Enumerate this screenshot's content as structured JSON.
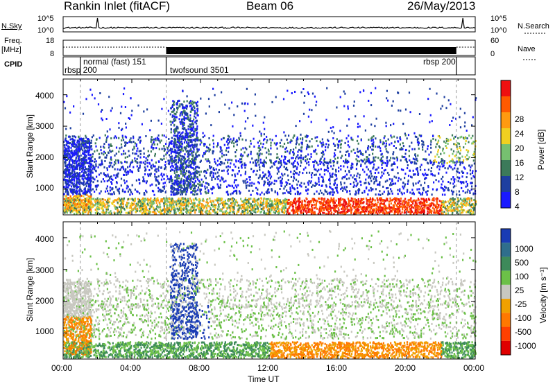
{
  "header": {
    "station": "Rankin Inlet (fitACF)",
    "beam": "Beam 06",
    "date": "26/May/2013"
  },
  "top_panels": {
    "nsky_label": "N.Sky",
    "nsky_ticks": [
      "10^5",
      "10^0"
    ],
    "nsearch_label": "N.Search",
    "nsearch_ticks": [
      "10^5",
      "10^0"
    ],
    "freq_label": "Freq.",
    "freq_unit": "[MHz]",
    "freq_ticks": [
      "18",
      "8"
    ],
    "nave_label": "Nave",
    "nave_ticks": [
      "60",
      "0"
    ],
    "cpid_label": "CPID",
    "cpid_segments": [
      {
        "label": "rbsp 200",
        "start_hr": 0.0,
        "end_hr": 1.0
      },
      {
        "label": "normal (fast) 151",
        "start_hr": 1.0,
        "end_hr": 6.0
      },
      {
        "label": "twofsound 3501",
        "start_hr": 6.0,
        "end_hr": 22.9
      },
      {
        "label": "rbsp 200",
        "start_hr": 22.9,
        "end_hr": 24.0
      }
    ]
  },
  "chart_data": [
    {
      "type": "heatmap",
      "name": "power",
      "xlabel": "",
      "ylabel": "Slant Range [km]",
      "xlim": [
        0,
        24
      ],
      "ylim": [
        180,
        4500
      ],
      "yticks": [
        "1000",
        "2000",
        "3000",
        "4000"
      ],
      "colorbar": {
        "label": "Power [dB]",
        "ticks": [
          "28",
          "24",
          "20",
          "16",
          "12",
          "8",
          "4"
        ],
        "colors": [
          "#1a1aff",
          "#1e3fa0",
          "#3c7a5a",
          "#76c070",
          "#f0d020",
          "#ff9a10",
          "#ff5a00",
          "#ee1010"
        ]
      }
    },
    {
      "type": "heatmap",
      "name": "velocity",
      "xlabel": "Time UT",
      "ylabel": "Slant Range [km]",
      "xlim": [
        0,
        24
      ],
      "ylim": [
        180,
        4500
      ],
      "xticks": [
        "00:00",
        "04:00",
        "08:00",
        "12:00",
        "16:00",
        "20:00",
        "00:00"
      ],
      "yticks": [
        "1000",
        "2000",
        "3000",
        "4000"
      ],
      "colorbar": {
        "label": "Velocity [m s⁻¹]",
        "ticks": [
          "1000",
          "500",
          "100",
          "25",
          "-25",
          "-100",
          "-500",
          "-1000"
        ],
        "colors": [
          "#1a3cb4",
          "#2f6e8c",
          "#3d8a5a",
          "#6cc048",
          "#c8c8c0",
          "#f0a000",
          "#ff7800",
          "#ff4000",
          "#e00000"
        ]
      }
    }
  ]
}
